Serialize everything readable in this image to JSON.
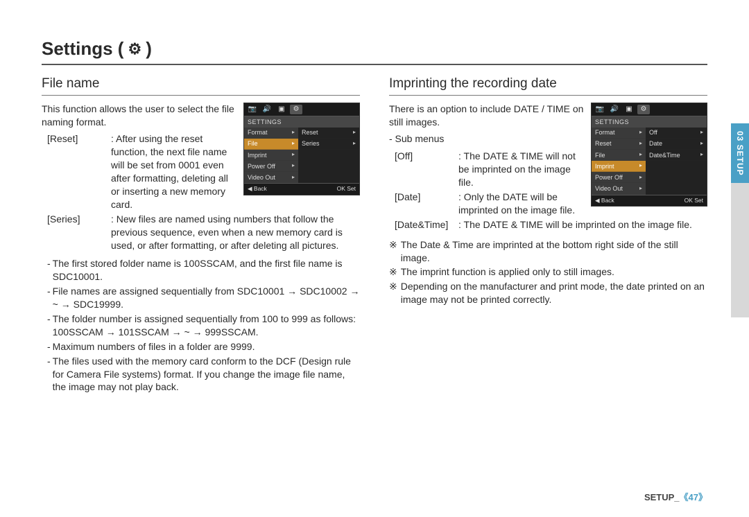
{
  "page": {
    "title_prefix": "Settings (",
    "title_suffix": ")",
    "side_tab": "03 SETUP",
    "footer_label": "SETUP_",
    "footer_page": "《47》"
  },
  "left": {
    "heading": "File name",
    "intro": "This function allows the user to select the file naming format.",
    "options": [
      {
        "key": "[Reset]",
        "val": ": After using the reset function, the next file name will be set from 0001 even after formatting, deleting all or inserting a new memory card."
      },
      {
        "key": "[Series]",
        "val": ": New files are named using numbers that follow the previous sequence, even when a new memory card is used, or after formatting, or after deleting all pictures."
      }
    ],
    "bullets": [
      "The first stored folder name is 100SSCAM, and the first file name is SDC10001.",
      "File names are assigned sequentially from SDC10001 → SDC10002 → ~ → SDC19999.",
      "The folder number is assigned sequentially from 100 to 999 as follows: 100SSCAM → 101SSCAM → ~ → 999SSCAM.",
      "Maximum numbers of files in a folder are 9999.",
      "The files used with the memory card conform to the DCF (Design rule for Camera File systems) format. If you change the image file name, the image may not play back."
    ],
    "lcd": {
      "header": "SETTINGS",
      "left_items": [
        "Format",
        "File",
        "Imprint",
        "Power Off",
        "Video Out"
      ],
      "left_selected": "File",
      "right_items": [
        "Reset",
        "Series"
      ],
      "footer_back": "◀  Back",
      "footer_ok": "OK  Set"
    }
  },
  "right": {
    "heading": "Imprinting the recording date",
    "intro": "There is an option to include DATE / TIME on still images.",
    "sub_label": "- Sub menus",
    "options": [
      {
        "key": "[Off]",
        "val": ": The DATE & TIME will not be imprinted on the image file."
      },
      {
        "key": "[Date]",
        "val": ": Only the DATE will be imprinted on the image file."
      },
      {
        "key": "[Date&Time]",
        "val": ": The DATE & TIME will be imprinted on the image file."
      }
    ],
    "notes": [
      "The Date & Time are imprinted at the bottom right side of the still image.",
      "The imprint function is applied only to still images.",
      "Depending on the manufacturer and print mode, the date printed on an image may not be printed correctly."
    ],
    "lcd": {
      "header": "SETTINGS",
      "left_items": [
        "Format",
        "Reset",
        "File",
        "Imprint",
        "Power Off",
        "Video Out"
      ],
      "left_selected": "Imprint",
      "right_items": [
        "Off",
        "Date",
        "Date&Time"
      ],
      "footer_back": "◀  Back",
      "footer_ok": "OK  Set"
    }
  },
  "icons": {
    "tabs": [
      "📷",
      "🔊",
      "▣",
      "⚙"
    ]
  },
  "colors": {
    "accent": "#4aa0c6",
    "lcd_highlight": "#c78a2a"
  }
}
